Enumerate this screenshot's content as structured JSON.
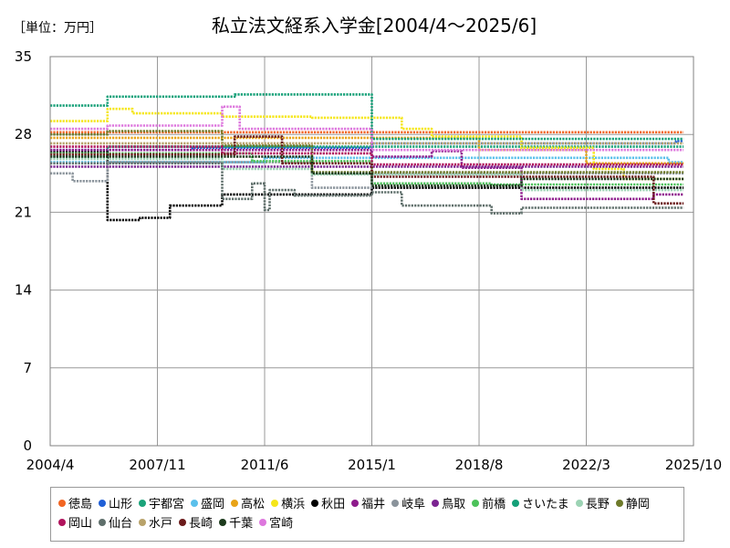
{
  "unit_label": "［単位：万円］",
  "chart_data": {
    "type": "line",
    "title": "私立法文経系入学金[2004/4～2025/6]",
    "xlabel": "",
    "ylabel": "",
    "x_ticks": [
      "2004/4",
      "2007/11",
      "2011/6",
      "2015/1",
      "2018/8",
      "2022/3",
      "2025/10"
    ],
    "x_range": [
      "2004-04",
      "2025-10"
    ],
    "y_ticks": [
      "0",
      "7",
      "14",
      "21",
      "28",
      "35"
    ],
    "ylim": [
      0,
      35
    ],
    "grid": true,
    "legend_position": "bottom",
    "series": [
      {
        "name": "徳島",
        "color": "#F26522",
        "points": [
          [
            "2004-04",
            28.2
          ],
          [
            "2025-06",
            28.2
          ]
        ]
      },
      {
        "name": "山形",
        "color": "#1F5FD6",
        "points": [
          [
            "2004-04",
            26.6
          ],
          [
            "2009-01",
            26.6
          ],
          [
            "2009-01",
            26.8
          ],
          [
            "2015-01",
            26.8
          ],
          [
            "2015-01",
            27.2
          ],
          [
            "2025-03",
            27.2
          ],
          [
            "2025-03",
            27.4
          ],
          [
            "2025-06",
            27.4
          ]
        ]
      },
      {
        "name": "宇都宮",
        "color": "#1BA37A",
        "points": [
          [
            "2004-04",
            26.0
          ],
          [
            "2006-03",
            26.0
          ],
          [
            "2006-03",
            26.9
          ],
          [
            "2025-06",
            26.9
          ]
        ]
      },
      {
        "name": "盛岡",
        "color": "#5BC0EB",
        "points": [
          [
            "2004-04",
            25.5
          ],
          [
            "2011-06",
            25.5
          ],
          [
            "2011-06",
            25.9
          ],
          [
            "2024-12",
            25.9
          ],
          [
            "2024-12",
            25.5
          ],
          [
            "2025-06",
            25.5
          ]
        ]
      },
      {
        "name": "高松",
        "color": "#E8A317",
        "points": [
          [
            "2004-04",
            27.7
          ],
          [
            "2018-08",
            27.7
          ],
          [
            "2018-08",
            26.6
          ],
          [
            "2022-03",
            26.6
          ],
          [
            "2022-03",
            25.4
          ],
          [
            "2025-06",
            25.4
          ]
        ]
      },
      {
        "name": "横浜",
        "color": "#F5E61A",
        "points": [
          [
            "2004-04",
            29.2
          ],
          [
            "2006-03",
            29.2
          ],
          [
            "2006-03",
            30.3
          ],
          [
            "2007-01",
            30.3
          ],
          [
            "2007-01",
            29.9
          ],
          [
            "2010-01",
            29.9
          ],
          [
            "2010-01",
            29.6
          ],
          [
            "2013-01",
            29.6
          ],
          [
            "2013-01",
            29.5
          ],
          [
            "2016-01",
            29.5
          ],
          [
            "2016-01",
            28.5
          ],
          [
            "2017-01",
            28.5
          ],
          [
            "2017-01",
            27.8
          ],
          [
            "2020-01",
            27.8
          ],
          [
            "2020-01",
            26.8
          ],
          [
            "2022-06",
            26.8
          ],
          [
            "2022-06",
            24.9
          ],
          [
            "2023-06",
            24.9
          ],
          [
            "2023-06",
            24.0
          ],
          [
            "2025-06",
            24.0
          ]
        ]
      },
      {
        "name": "秋田",
        "color": "#000000",
        "points": [
          [
            "2004-04",
            26.4
          ],
          [
            "2006-03",
            26.4
          ],
          [
            "2006-03",
            20.3
          ],
          [
            "2007-04",
            20.3
          ],
          [
            "2007-04",
            20.5
          ],
          [
            "2008-04",
            20.5
          ],
          [
            "2008-04",
            21.6
          ],
          [
            "2010-01",
            21.6
          ],
          [
            "2010-01",
            22.6
          ],
          [
            "2015-01",
            22.6
          ],
          [
            "2015-01",
            23.2
          ],
          [
            "2025-06",
            23.2
          ]
        ]
      },
      {
        "name": "福井",
        "color": "#8E1B8C",
        "points": [
          [
            "2004-04",
            26.6
          ],
          [
            "2015-01",
            26.6
          ],
          [
            "2015-01",
            26.0
          ],
          [
            "2017-01",
            26.0
          ],
          [
            "2017-01",
            26.5
          ],
          [
            "2018-01",
            26.5
          ],
          [
            "2018-01",
            25.0
          ],
          [
            "2020-01",
            25.0
          ],
          [
            "2020-01",
            22.2
          ],
          [
            "2024-06",
            22.2
          ],
          [
            "2024-06",
            22.6
          ],
          [
            "2025-06",
            22.6
          ]
        ]
      },
      {
        "name": "岐阜",
        "color": "#8A939B",
        "points": [
          [
            "2004-04",
            24.5
          ],
          [
            "2005-01",
            24.5
          ],
          [
            "2005-01",
            23.8
          ],
          [
            "2006-03",
            23.8
          ],
          [
            "2006-03",
            25.5
          ],
          [
            "2013-01",
            25.5
          ],
          [
            "2013-01",
            23.2
          ],
          [
            "2015-01",
            23.2
          ],
          [
            "2015-01",
            24.5
          ],
          [
            "2025-06",
            24.5
          ]
        ]
      },
      {
        "name": "鳥取",
        "color": "#7B2391",
        "points": [
          [
            "2004-04",
            25.1
          ],
          [
            "2025-06",
            25.1
          ]
        ]
      },
      {
        "name": "前橋",
        "color": "#4CC25A",
        "points": [
          [
            "2004-04",
            26.3
          ],
          [
            "2011-01",
            26.3
          ],
          [
            "2011-01",
            25.6
          ],
          [
            "2015-01",
            25.6
          ],
          [
            "2015-01",
            23.6
          ],
          [
            "2019-01",
            23.6
          ],
          [
            "2019-01",
            23.5
          ],
          [
            "2025-06",
            23.5
          ]
        ]
      },
      {
        "name": "さいたま",
        "color": "#14A078",
        "points": [
          [
            "2004-04",
            30.6
          ],
          [
            "2006-03",
            30.6
          ],
          [
            "2006-03",
            31.4
          ],
          [
            "2010-06",
            31.4
          ],
          [
            "2010-06",
            31.6
          ],
          [
            "2015-01",
            31.6
          ],
          [
            "2015-01",
            27.6
          ],
          [
            "2025-06",
            27.6
          ]
        ]
      },
      {
        "name": "長野",
        "color": "#9CD3B4",
        "points": [
          [
            "2004-04",
            25.8
          ],
          [
            "2010-01",
            25.8
          ],
          [
            "2010-01",
            24.9
          ],
          [
            "2013-01",
            24.9
          ],
          [
            "2013-01",
            24.4
          ],
          [
            "2020-01",
            24.4
          ],
          [
            "2020-01",
            23.0
          ],
          [
            "2025-06",
            23.0
          ]
        ]
      },
      {
        "name": "静岡",
        "color": "#6E7A2A",
        "points": [
          [
            "2004-04",
            28.0
          ],
          [
            "2006-03",
            28.0
          ],
          [
            "2006-03",
            28.3
          ],
          [
            "2010-01",
            28.3
          ],
          [
            "2010-01",
            27.0
          ],
          [
            "2013-01",
            27.0
          ],
          [
            "2013-01",
            24.6
          ],
          [
            "2025-06",
            24.6
          ]
        ]
      },
      {
        "name": "岡山",
        "color": "#B0135C",
        "points": [
          [
            "2004-04",
            26.9
          ],
          [
            "2010-01",
            26.9
          ],
          [
            "2010-01",
            26.3
          ],
          [
            "2015-01",
            26.3
          ],
          [
            "2015-01",
            25.3
          ],
          [
            "2025-06",
            25.3
          ]
        ]
      },
      {
        "name": "仙台",
        "color": "#5E6E6A",
        "points": [
          [
            "2004-04",
            25.4
          ],
          [
            "2010-01",
            25.4
          ],
          [
            "2010-01",
            22.2
          ],
          [
            "2011-01",
            22.2
          ],
          [
            "2011-01",
            23.6
          ],
          [
            "2011-06",
            23.6
          ],
          [
            "2011-06",
            21.2
          ],
          [
            "2011-08",
            21.2
          ],
          [
            "2011-08",
            23.0
          ],
          [
            "2012-06",
            23.0
          ],
          [
            "2012-06",
            22.5
          ],
          [
            "2015-01",
            22.5
          ],
          [
            "2015-01",
            22.8
          ],
          [
            "2016-01",
            22.8
          ],
          [
            "2016-01",
            21.6
          ],
          [
            "2019-01",
            21.6
          ],
          [
            "2019-01",
            20.9
          ],
          [
            "2020-01",
            20.9
          ],
          [
            "2020-01",
            21.4
          ],
          [
            "2025-06",
            21.4
          ]
        ]
      },
      {
        "name": "水戸",
        "color": "#B8A26A",
        "points": [
          [
            "2004-04",
            27.2
          ],
          [
            "2025-06",
            27.2
          ]
        ]
      },
      {
        "name": "長崎",
        "color": "#6B1A1A",
        "points": [
          [
            "2004-04",
            26.2
          ],
          [
            "2010-06",
            26.2
          ],
          [
            "2010-06",
            27.8
          ],
          [
            "2012-01",
            27.8
          ],
          [
            "2012-01",
            25.4
          ],
          [
            "2015-01",
            25.4
          ],
          [
            "2015-01",
            24.2
          ],
          [
            "2024-06",
            24.2
          ],
          [
            "2024-06",
            21.8
          ],
          [
            "2025-06",
            21.8
          ]
        ]
      },
      {
        "name": "千葉",
        "color": "#1C3A1C",
        "points": [
          [
            "2004-04",
            26.0
          ],
          [
            "2013-01",
            26.0
          ],
          [
            "2013-01",
            24.5
          ],
          [
            "2015-01",
            24.5
          ],
          [
            "2015-01",
            23.4
          ],
          [
            "2020-01",
            23.4
          ],
          [
            "2020-01",
            24.0
          ],
          [
            "2025-06",
            24.0
          ]
        ]
      },
      {
        "name": "宮崎",
        "color": "#DD77DD",
        "points": [
          [
            "2004-04",
            28.5
          ],
          [
            "2006-03",
            28.5
          ],
          [
            "2006-03",
            28.8
          ],
          [
            "2010-01",
            28.8
          ],
          [
            "2010-01",
            30.5
          ],
          [
            "2010-08",
            30.5
          ],
          [
            "2010-08",
            28.5
          ],
          [
            "2015-01",
            28.5
          ],
          [
            "2015-01",
            26.6
          ],
          [
            "2025-06",
            26.6
          ]
        ]
      }
    ]
  }
}
